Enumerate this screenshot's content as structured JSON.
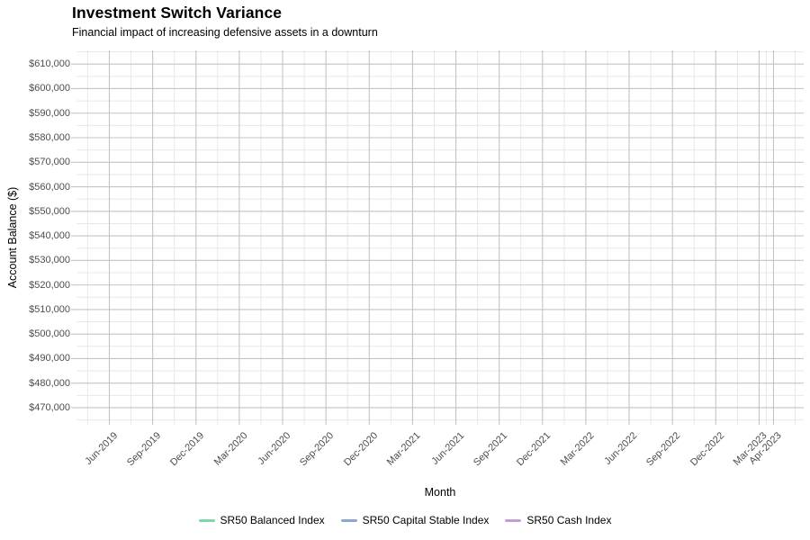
{
  "chart": {
    "title": "Investment Switch Variance",
    "subtitle": "Financial impact of increasing defensive assets in a downturn",
    "x_axis": {
      "label": "Month",
      "ticks": [
        "Jun-2019",
        "Sep-2019",
        "Dec-2019",
        "Mar-2020",
        "Jun-2020",
        "Sep-2020",
        "Dec-2020",
        "Mar-2021",
        "Jun-2021",
        "Sep-2021",
        "Dec-2021",
        "Mar-2022",
        "Jun-2022",
        "Sep-2022",
        "Dec-2022",
        "Mar-2023",
        "Apr-2023"
      ]
    },
    "y_axis": {
      "label": "Account Balance ($)",
      "ticks": [
        "$610,000",
        "$600,000",
        "$590,000",
        "$580,000",
        "$570,000",
        "$560,000",
        "$550,000",
        "$540,000",
        "$530,000",
        "$520,000",
        "$510,000",
        "$500,000",
        "$490,000",
        "$480,000",
        "$470,000"
      ]
    },
    "legend": {
      "items": [
        {
          "label": "SR50 Balanced Index",
          "color": "#7ED6AB"
        },
        {
          "label": "SR50 Capital Stable Index",
          "color": "#8FA6D0"
        },
        {
          "label": "SR50 Cash Index",
          "color": "#C79BD4"
        }
      ]
    },
    "colors": {
      "background": "#ffffff",
      "grid_major": "#C4C4C4",
      "grid_minor": "#E8E8E8",
      "tick_text": "#4d4d4d",
      "title_text": "#000000"
    }
  },
  "chart_data": {
    "type": "line",
    "title": "Investment Switch Variance",
    "subtitle": "Financial impact of increasing defensive assets in a downturn",
    "xlabel": "Month",
    "ylabel": "Account Balance ($)",
    "x_tick_labels": [
      "Jun-2019",
      "Sep-2019",
      "Dec-2019",
      "Mar-2020",
      "Jun-2020",
      "Sep-2020",
      "Dec-2020",
      "Mar-2021",
      "Jun-2021",
      "Sep-2021",
      "Dec-2021",
      "Mar-2022",
      "Jun-2022",
      "Sep-2022",
      "Dec-2022",
      "Mar-2023",
      "Apr-2023"
    ],
    "y_tick_values": [
      470000,
      480000,
      490000,
      500000,
      510000,
      520000,
      530000,
      540000,
      550000,
      560000,
      570000,
      580000,
      590000,
      600000,
      610000
    ],
    "y_tick_labels": [
      "$470,000",
      "$480,000",
      "$490,000",
      "$500,000",
      "$510,000",
      "$520,000",
      "$530,000",
      "$540,000",
      "$550,000",
      "$560,000",
      "$570,000",
      "$580,000",
      "$590,000",
      "$600,000",
      "$610,000"
    ],
    "ylim": [
      465000,
      615000
    ],
    "grid": "major and minor gray gridlines on white panel, no panel border",
    "legend_position": "bottom",
    "series": [
      {
        "name": "SR50 Balanced Index",
        "color": "#7ED6AB",
        "values": []
      },
      {
        "name": "SR50 Capital Stable Index",
        "color": "#8FA6D0",
        "values": []
      },
      {
        "name": "SR50 Cash Index",
        "color": "#C79BD4",
        "values": []
      }
    ],
    "note": "Plot panel is empty: the three legend series are declared but no data lines/points are drawn within the visible axis range."
  }
}
